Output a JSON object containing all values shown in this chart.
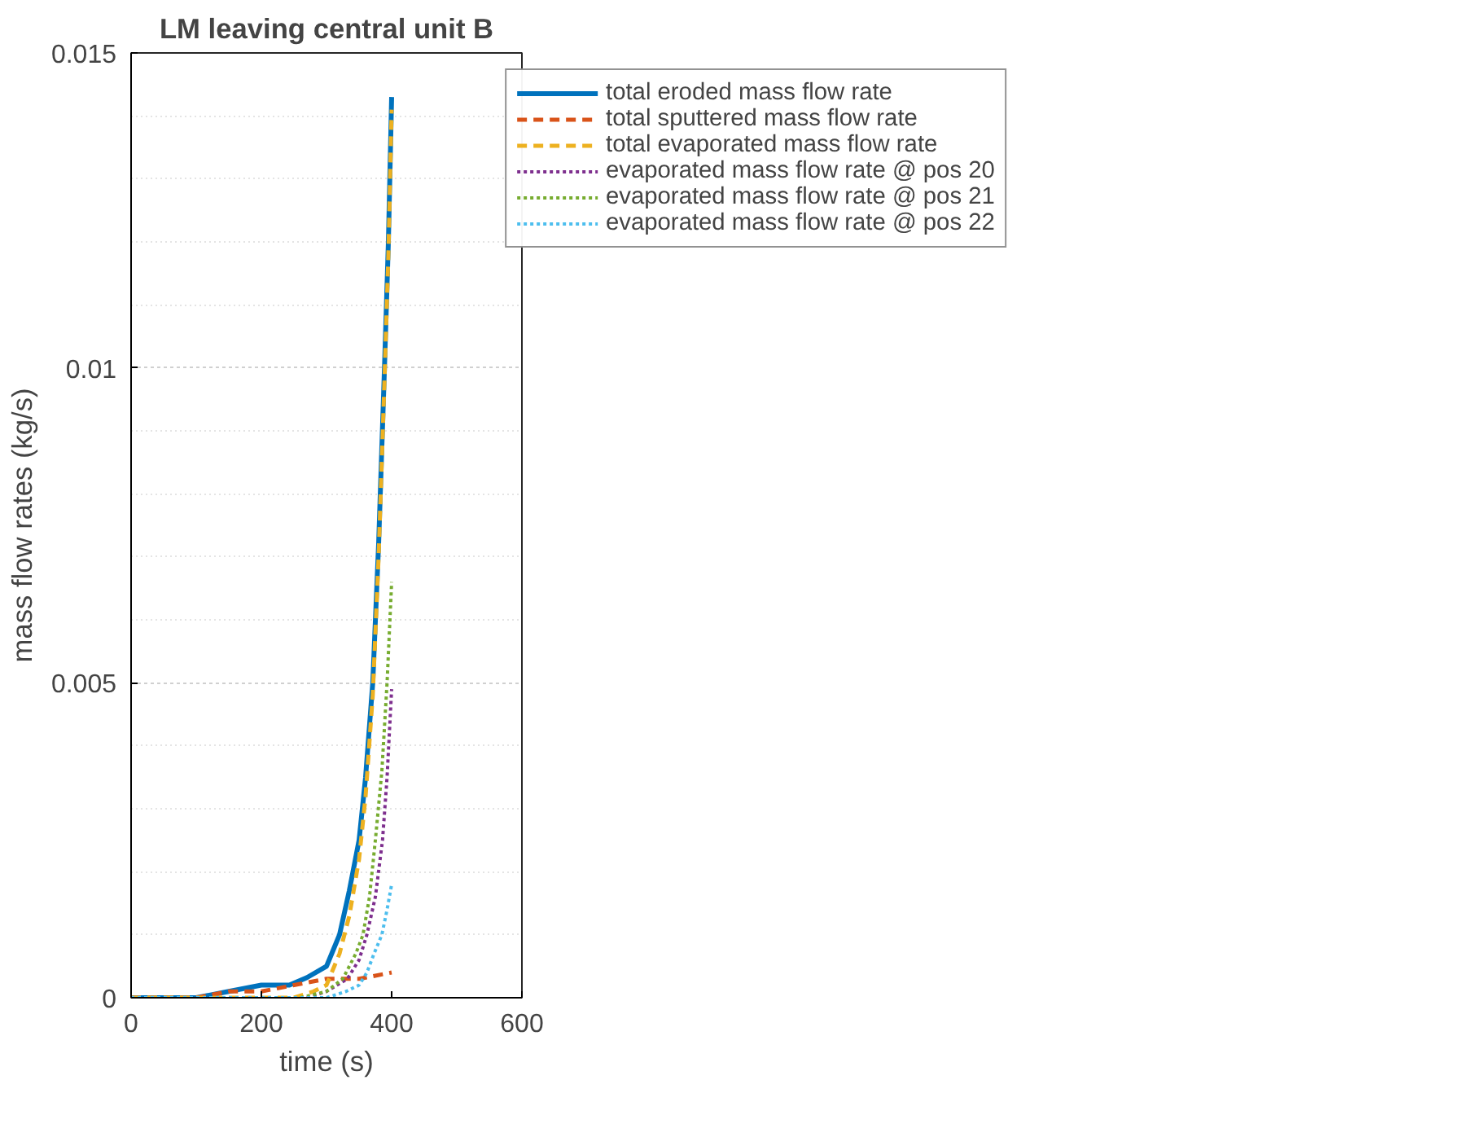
{
  "chart_data": {
    "type": "line",
    "title": "LM leaving central unit B",
    "xlabel": "time (s)",
    "ylabel": "mass flow rates (kg/s)",
    "xlim": [
      0,
      600
    ],
    "xticks": [
      0,
      200,
      400,
      600
    ],
    "ylim": [
      0,
      0.015
    ],
    "yticks": [
      0,
      0.005,
      0.01,
      0.015
    ],
    "grid": true,
    "legend": "right",
    "series": [
      {
        "name": "total eroded mass flow rate",
        "color": "#0072bd",
        "line_style": "solid",
        "x": [
          0,
          100,
          150,
          200,
          243,
          270,
          300,
          320,
          335,
          350,
          360,
          371,
          380,
          389,
          395,
          400
        ],
        "values": [
          0,
          0,
          0.0001,
          0.0002,
          0.0002,
          0.00032,
          0.0005,
          0.001,
          0.0017,
          0.0025,
          0.0035,
          0.005,
          0.0072,
          0.01,
          0.012,
          0.0143
        ]
      },
      {
        "name": "total sputtered mass flow rate",
        "color": "#d95319",
        "line_style": "dashed",
        "x": [
          0,
          100,
          150,
          200,
          250,
          300,
          350,
          400
        ],
        "values": [
          0,
          0,
          0.0001,
          0.0001,
          0.0002,
          0.0003,
          0.0003,
          0.0004
        ]
      },
      {
        "name": "total evaporated mass flow rate",
        "color": "#edb120",
        "line_style": "dashed",
        "x": [
          0,
          250,
          280,
          300,
          320,
          335,
          350,
          360,
          371,
          380,
          389,
          395,
          400
        ],
        "values": [
          0,
          0,
          0.0001,
          0.0002,
          0.0007,
          0.0013,
          0.0022,
          0.0032,
          0.0048,
          0.007,
          0.0098,
          0.0118,
          0.0141
        ]
      },
      {
        "name": "evaporated mass flow rate @ pos 20",
        "color": "#7e2f8e",
        "line_style": "dotted",
        "x": [
          0,
          270,
          300,
          332,
          350,
          362,
          375,
          386,
          393,
          400
        ],
        "values": [
          0,
          0,
          0.0001,
          0.0003,
          0.0006,
          0.001,
          0.0016,
          0.0025,
          0.0035,
          0.0049
        ]
      },
      {
        "name": "evaporated mass flow rate @ pos 21",
        "color": "#77ac30",
        "line_style": "dotted",
        "x": [
          0,
          260,
          300,
          325,
          345,
          356,
          366,
          375,
          385,
          393,
          400
        ],
        "values": [
          0,
          0,
          0.0001,
          0.0003,
          0.0007,
          0.001,
          0.0016,
          0.0025,
          0.0036,
          0.005,
          0.0066
        ]
      },
      {
        "name": "evaporated mass flow rate @ pos 22",
        "color": "#4dbeee",
        "line_style": "dotted",
        "x": [
          0,
          300,
          330,
          350,
          362,
          373,
          385,
          393,
          400
        ],
        "values": [
          0,
          0,
          0.0001,
          0.0002,
          0.0004,
          0.0007,
          0.001,
          0.0014,
          0.0018
        ]
      }
    ]
  }
}
